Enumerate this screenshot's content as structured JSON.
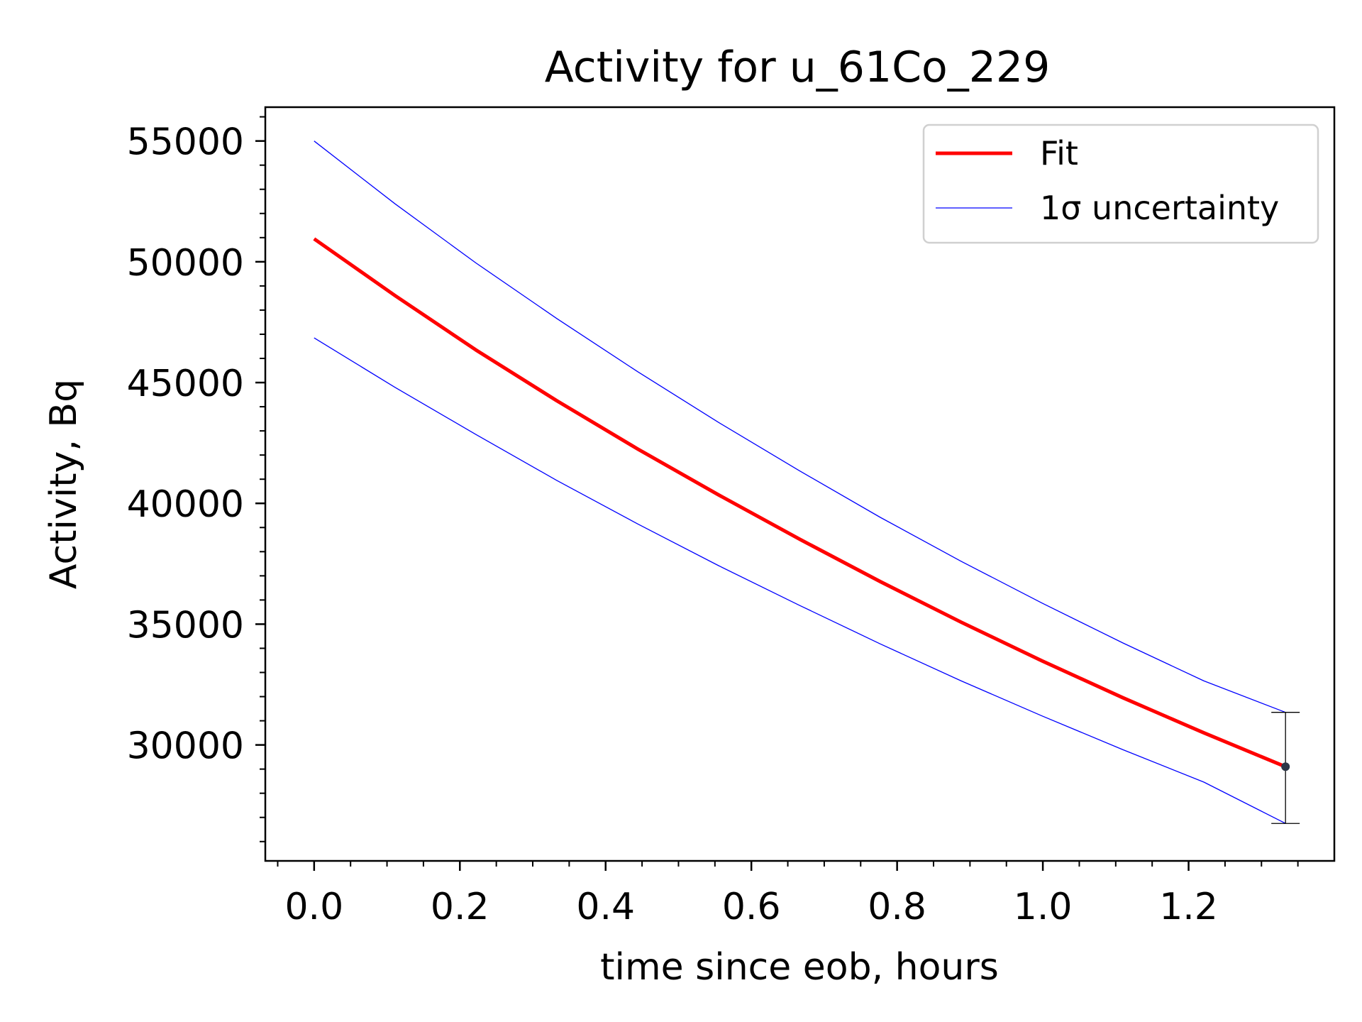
{
  "chart_data": {
    "type": "line",
    "title": "Activity for u_61Co_229",
    "xlabel": "time since eob, hours",
    "ylabel": "Activity, Bq",
    "xlim": [
      -0.067,
      1.4
    ],
    "ylim": [
      25200,
      56400
    ],
    "x_ticks": [
      0.0,
      0.2,
      0.4,
      0.6,
      0.8,
      1.0,
      1.2
    ],
    "x_tick_labels": [
      "0.0",
      "0.2",
      "0.4",
      "0.6",
      "0.8",
      "1.0",
      "1.2"
    ],
    "y_ticks": [
      30000,
      35000,
      40000,
      45000,
      50000,
      55000
    ],
    "y_tick_labels": [
      "30000",
      "35000",
      "40000",
      "45000",
      "50000",
      "55000"
    ],
    "grid": false,
    "legend_position": "top-right",
    "series": [
      {
        "name": "Fit",
        "color": "#ff0000",
        "x": [
          0.0,
          0.111,
          0.222,
          0.333,
          0.444,
          0.555,
          0.666,
          0.777,
          0.888,
          0.999,
          1.11,
          1.221,
          1.333
        ],
        "y": [
          50950,
          48600,
          46350,
          44250,
          42250,
          40350,
          38520,
          36760,
          35080,
          33480,
          31950,
          30500,
          29100
        ]
      },
      {
        "name": "1σ uncertainty",
        "color": "#0000ff",
        "x": [
          0.0,
          0.111,
          0.222,
          0.333,
          0.444,
          0.555,
          0.666,
          0.777,
          0.888,
          0.999,
          1.11,
          1.221,
          1.333
        ],
        "y": [
          55000,
          52400,
          49950,
          47650,
          45450,
          43350,
          41350,
          39420,
          37600,
          35870,
          34220,
          32650,
          31350
        ]
      },
      {
        "name": "",
        "color": "#0000ff",
        "x": [
          0.0,
          0.111,
          0.222,
          0.333,
          0.444,
          0.555,
          0.666,
          0.777,
          0.888,
          0.999,
          1.11,
          1.221,
          1.333
        ],
        "y": [
          46850,
          44800,
          42850,
          40950,
          39150,
          37420,
          35780,
          34180,
          32650,
          31200,
          29800,
          28460,
          26750
        ]
      }
    ],
    "measurement": {
      "x": 1.333,
      "y": 29100,
      "y_low": 26750,
      "y_high": 31350,
      "color": "#2d3748"
    }
  }
}
